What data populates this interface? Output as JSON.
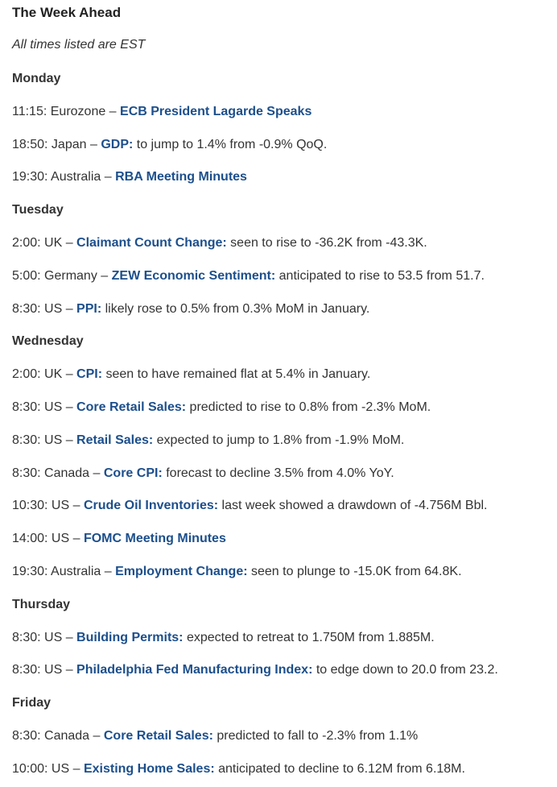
{
  "title": "The Week Ahead",
  "note": "All times listed are EST",
  "days": [
    {
      "name": "Monday",
      "events": [
        {
          "prefix": "11:15: Eurozone – ",
          "link": "ECB President Lagarde Speaks",
          "suffix": ""
        },
        {
          "prefix": "18:50: Japan – ",
          "link": "GDP:",
          "suffix": " to jump to 1.4% from -0.9% QoQ."
        },
        {
          "prefix": "19:30: Australia  – ",
          "link": "RBA Meeting Minutes",
          "suffix": ""
        }
      ]
    },
    {
      "name": "Tuesday",
      "events": [
        {
          "prefix": "2:00: UK – ",
          "link": "Claimant Count Change:",
          "suffix": " seen to rise to -36.2K from -43.3K."
        },
        {
          "prefix": "5:00: Germany – ",
          "link": "ZEW Economic Sentiment:",
          "suffix": " anticipated to rise to 53.5 from 51.7."
        },
        {
          "prefix": "8:30: US – ",
          "link": "PPI:",
          "suffix": " likely rose to 0.5% from 0.3% MoM in January."
        }
      ]
    },
    {
      "name": "Wednesday",
      "events": [
        {
          "prefix": "2:00: UK – ",
          "link": "CPI:",
          "suffix": " seen to have remained flat at 5.4% in January."
        },
        {
          "prefix": "8:30: US – ",
          "link": "Core Retail Sales:",
          "suffix": " predicted to rise to 0.8% from -2.3% MoM."
        },
        {
          "prefix": "8:30: US – ",
          "link": "Retail Sales:",
          "suffix": " expected to jump to 1.8% from -1.9% MoM."
        },
        {
          "prefix": "8:30: Canada – ",
          "link": "Core CPI:",
          "suffix": " forecast to decline 3.5% from 4.0% YoY."
        },
        {
          "prefix": "10:30: US – ",
          "link": "Crude Oil Inventories:",
          "suffix": " last week showed a drawdown of -4.756M Bbl."
        },
        {
          "prefix": "14:00: US – ",
          "link": "FOMC Meeting Minutes",
          "suffix": ""
        },
        {
          "prefix": "19:30: Australia – ",
          "link": "Employment Change:",
          "suffix": " seen to plunge to -15.0K from 64.8K."
        }
      ]
    },
    {
      "name": "Thursday",
      "events": [
        {
          "prefix": "8:30: US – ",
          "link": "Building Permits:",
          "suffix": " expected to retreat to 1.750M from 1.885M."
        },
        {
          "prefix": "8:30: US – ",
          "link": "Philadelphia Fed Manufacturing Index:",
          "suffix": " to edge down to 20.0 from 23.2."
        }
      ]
    },
    {
      "name": "Friday",
      "events": [
        {
          "prefix": "8:30: Canada – ",
          "link": "Core Retail Sales:",
          "suffix": " predicted to fall to -2.3% from 1.1%"
        },
        {
          "prefix": "10:00: US – ",
          "link": "Existing Home Sales:",
          "suffix": " anticipated to decline to 6.12M from 6.18M."
        }
      ]
    }
  ]
}
